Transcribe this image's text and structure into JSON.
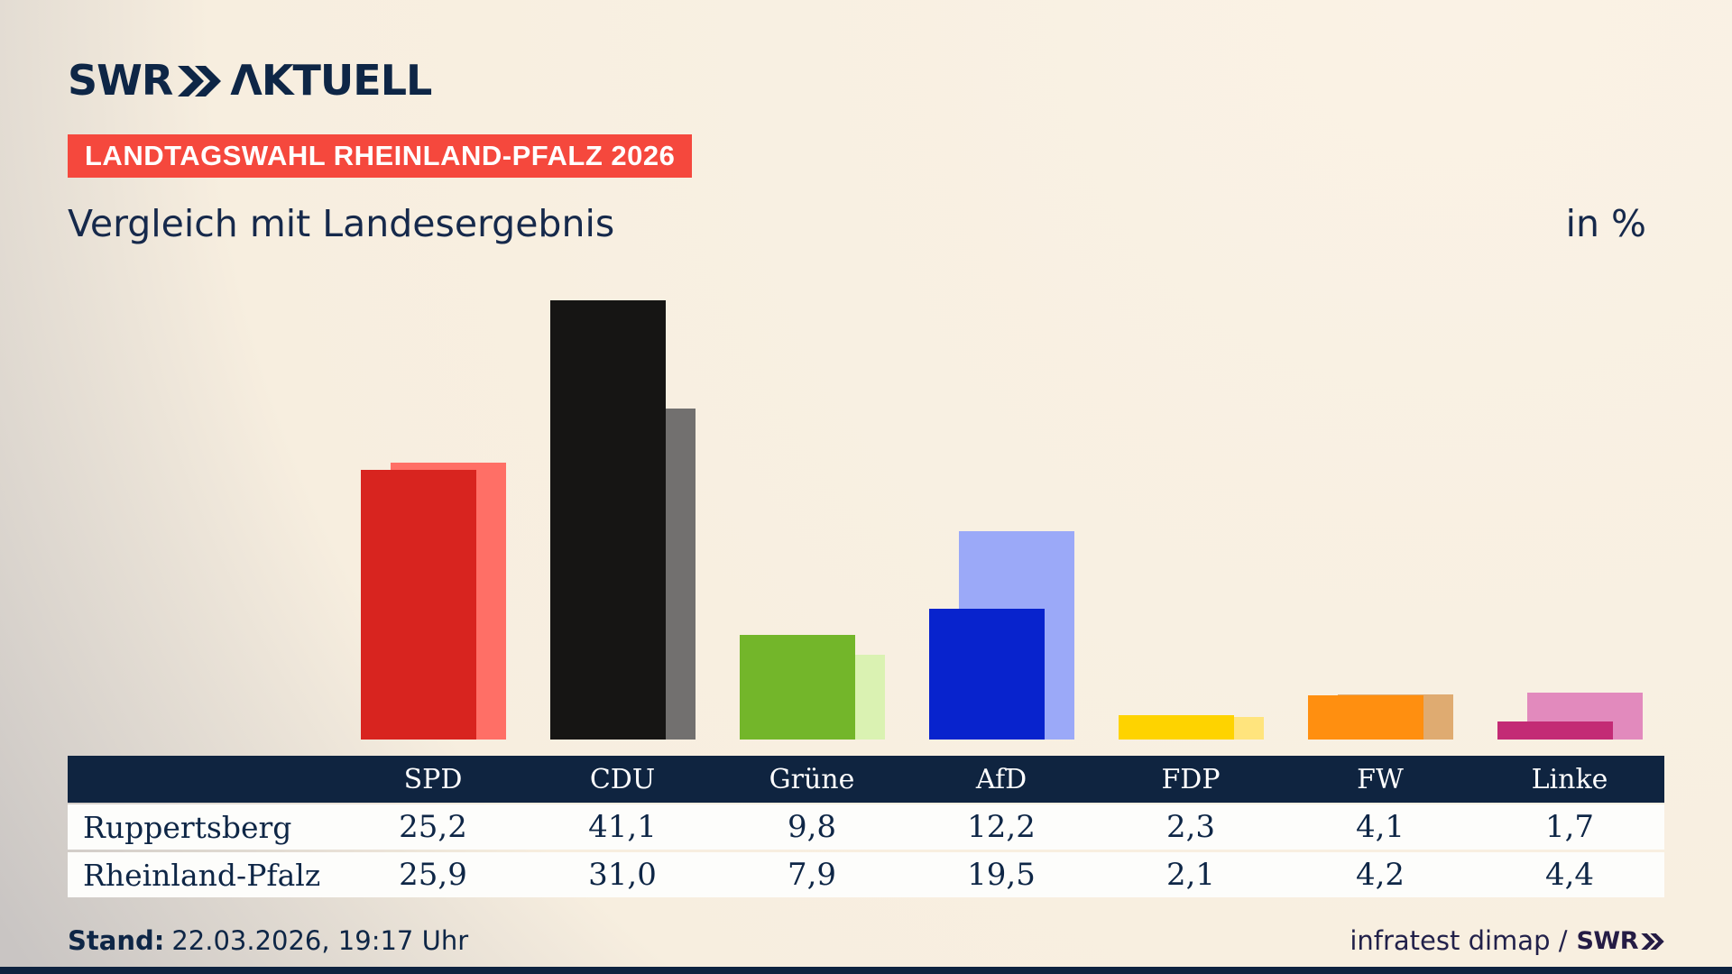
{
  "header": {
    "logo": {
      "brand": "SWR",
      "name": "ΛKTUELL"
    },
    "badge": "LANDTAGSWAHL RHEINLAND-PFALZ 2026",
    "title": "Vergleich mit Landesergebnis",
    "unit_label": "in %"
  },
  "chart_data": {
    "type": "bar",
    "categories": [
      "SPD",
      "CDU",
      "Grüne",
      "AfD",
      "FDP",
      "FW",
      "Linke"
    ],
    "series": [
      {
        "name": "Ruppertsberg",
        "values": [
          25.2,
          41.1,
          9.8,
          12.2,
          2.3,
          4.1,
          1.7
        ],
        "colors": [
          "#d8241f",
          "#161514",
          "#73b62a",
          "#0823cd",
          "#fed300",
          "#ff8f10",
          "#c32b75"
        ]
      },
      {
        "name": "Rheinland-Pfalz",
        "values": [
          25.9,
          31.0,
          7.9,
          19.5,
          2.1,
          4.2,
          4.4
        ],
        "colors": [
          "#ff6f66",
          "#72706f",
          "#daf2b2",
          "#9ba9f8",
          "#ffe47d",
          "#dfab71",
          "#e28abd"
        ]
      }
    ],
    "title": "Vergleich mit Landesergebnis",
    "xlabel": "",
    "ylabel": "in %",
    "ylim": [
      0,
      45
    ],
    "grid": false,
    "legend_position": "none",
    "value_format": "decimal-comma"
  },
  "table": {
    "header_labels": [
      "SPD",
      "CDU",
      "Grüne",
      "AfD",
      "FDP",
      "FW",
      "Linke"
    ],
    "rows": [
      {
        "label": "Ruppertsberg",
        "values": [
          "25,2",
          "41,1",
          "9,8",
          "12,2",
          "2,3",
          "4,1",
          "1,7"
        ]
      },
      {
        "label": "Rheinland-Pfalz",
        "values": [
          "25,9",
          "31,0",
          "7,9",
          "19,5",
          "2,1",
          "4,2",
          "4,4"
        ]
      }
    ]
  },
  "footer": {
    "stand_label": "Stand:",
    "stand_value": "22.03.2026, 19:17 Uhr",
    "source": "infratest dimap /",
    "source_brand": "SWR"
  },
  "colors": {
    "background_cream": "#f8f0e3",
    "background_gray": "#c9c5c3",
    "navy": "#0e2646",
    "table_header_bg": "#0f2440",
    "badge_red": "#f5483d",
    "footer_indigo": "#251c45",
    "row_bg": "#fdfdfb"
  }
}
